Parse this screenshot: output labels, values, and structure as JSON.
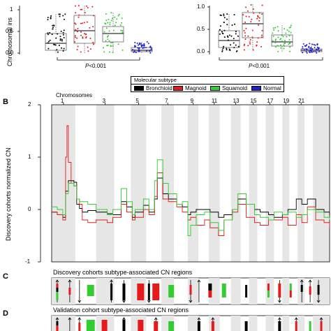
{
  "panelA": {
    "ylabel": "Chromosomal ins",
    "left_yticks": [
      "1",
      "0.5",
      "0.0"
    ],
    "right_yticks": [
      "1.0",
      "0.5",
      "0.0"
    ],
    "pvalue_left": "P",
    "pvalue_left_rest": "<0.001",
    "pvalue_right": "P",
    "pvalue_right_rest": "<0.001"
  },
  "legend": {
    "title": "Molecular subtype",
    "items": [
      {
        "label": "Bronchioid",
        "color": "#000000"
      },
      {
        "label": "Magnoid",
        "color": "#e41a1c"
      },
      {
        "label": "Squamoid",
        "color": "#33cc33"
      },
      {
        "label": "Normal",
        "color": "#1f1fd0"
      }
    ]
  },
  "panelB": {
    "letter": "B",
    "top_label": "Chromosomes",
    "ylabel": "Discovery cohorts normalized CN",
    "chromosome_labels": [
      "1",
      "3",
      "5",
      "7",
      "9",
      "11",
      "13",
      "15",
      "17",
      "19",
      "21"
    ],
    "yticks": [
      "2",
      "1",
      "0",
      "-1"
    ]
  },
  "panelC": {
    "letter": "C",
    "title": "Discovery cohorts subtype-associated CN regions"
  },
  "panelD": {
    "letter": "D",
    "title": "Validation cohort subtype-associated CN regions"
  },
  "chart_data": {
    "type": "line",
    "title": "",
    "xlabel": "Chromosomes",
    "ylabel": "Discovery cohorts normalized CN",
    "ylim": [
      -1,
      2
    ],
    "grid": false,
    "series": [
      {
        "name": "Bronchioid",
        "color": "#000000",
        "x": [
          0,
          0.02,
          0.04,
          0.05,
          0.06,
          0.08,
          0.09,
          0.1,
          0.11,
          0.13,
          0.16,
          0.2,
          0.22,
          0.25,
          0.27,
          0.29,
          0.3,
          0.33,
          0.35,
          0.37,
          0.38,
          0.4,
          0.42,
          0.45,
          0.47,
          0.49,
          0.5,
          0.52,
          0.55,
          0.57,
          0.6,
          0.62,
          0.65,
          0.67,
          0.7,
          0.73,
          0.75,
          0.78,
          0.8,
          0.83,
          0.85,
          0.88,
          0.9,
          0.92,
          0.95,
          0.98,
          1.0
        ],
        "y": [
          -0.05,
          -0.1,
          -0.15,
          0.35,
          0.55,
          0.52,
          0.1,
          0.02,
          -0.05,
          -0.02,
          -0.05,
          -0.08,
          -0.1,
          0.15,
          0.05,
          -0.15,
          -0.05,
          0.08,
          -0.05,
          0.2,
          0.6,
          0.3,
          0.2,
          0.1,
          0.05,
          -0.1,
          -0.05,
          0.0,
          0.0,
          -0.05,
          -0.15,
          -0.1,
          0.0,
          0.2,
          0.1,
          0.0,
          -0.05,
          -0.1,
          -0.15,
          -0.1,
          0.0,
          0.2,
          0.1,
          0.2,
          0.0,
          -0.05,
          -0.1
        ]
      },
      {
        "name": "Magnoid",
        "color": "#e41a1c",
        "x": [
          0,
          0.02,
          0.04,
          0.05,
          0.055,
          0.06,
          0.07,
          0.08,
          0.09,
          0.1,
          0.11,
          0.13,
          0.16,
          0.2,
          0.22,
          0.25,
          0.27,
          0.29,
          0.3,
          0.33,
          0.35,
          0.37,
          0.38,
          0.4,
          0.42,
          0.45,
          0.47,
          0.49,
          0.5,
          0.52,
          0.55,
          0.57,
          0.6,
          0.62,
          0.65,
          0.67,
          0.7,
          0.73,
          0.75,
          0.78,
          0.8,
          0.83,
          0.85,
          0.88,
          0.9,
          0.92,
          0.95,
          0.98,
          1.0
        ],
        "y": [
          -0.05,
          -0.1,
          -0.2,
          1.0,
          1.6,
          0.9,
          0.5,
          0.45,
          0.2,
          0.1,
          -0.2,
          -0.25,
          -0.2,
          -0.25,
          -0.15,
          0.1,
          -0.05,
          -0.2,
          -0.15,
          0.0,
          -0.1,
          0.25,
          0.7,
          0.2,
          0.15,
          0.05,
          -0.05,
          -0.2,
          -0.15,
          -0.3,
          -0.2,
          -0.35,
          -0.5,
          -0.2,
          -0.05,
          0.1,
          -0.15,
          -0.25,
          -0.3,
          -0.2,
          -0.2,
          -0.15,
          -0.3,
          -0.1,
          -0.25,
          0.05,
          -0.2,
          -0.25,
          -0.35
        ]
      },
      {
        "name": "Squamoid",
        "color": "#33cc33",
        "x": [
          0,
          0.02,
          0.04,
          0.05,
          0.06,
          0.08,
          0.09,
          0.1,
          0.11,
          0.13,
          0.16,
          0.2,
          0.22,
          0.25,
          0.27,
          0.29,
          0.3,
          0.33,
          0.35,
          0.37,
          0.38,
          0.4,
          0.42,
          0.45,
          0.47,
          0.49,
          0.5,
          0.52,
          0.55,
          0.57,
          0.6,
          0.62,
          0.65,
          0.67,
          0.7,
          0.73,
          0.75,
          0.78,
          0.8,
          0.83,
          0.85,
          0.88,
          0.9,
          0.92,
          0.95,
          0.98,
          1.0
        ],
        "y": [
          0.05,
          0.0,
          -0.1,
          0.3,
          0.5,
          0.45,
          0.2,
          0.15,
          0.15,
          0.1,
          0.0,
          -0.1,
          0.0,
          0.4,
          0.15,
          -0.1,
          0.0,
          0.2,
          0.0,
          0.55,
          0.95,
          0.5,
          0.3,
          0.1,
          0.15,
          -0.5,
          -0.3,
          -0.1,
          -0.05,
          -0.25,
          -0.4,
          -0.2,
          0.0,
          0.3,
          0.1,
          -0.1,
          -0.15,
          -0.2,
          -0.05,
          -0.1,
          -0.05,
          -0.15,
          -0.1,
          0.0,
          -0.05,
          -0.15,
          -0.2
        ]
      }
    ],
    "chromosome_labels": [
      "1",
      "3",
      "5",
      "7",
      "9",
      "11",
      "13",
      "15",
      "17",
      "19",
      "21"
    ]
  }
}
